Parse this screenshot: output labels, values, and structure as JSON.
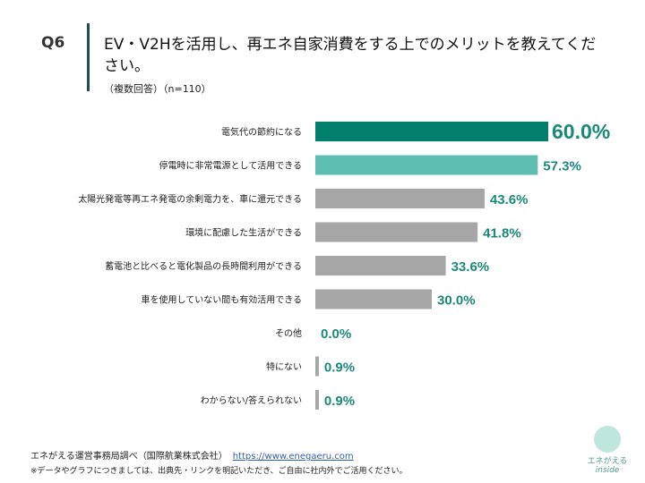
{
  "header": {
    "q_label": "Q6",
    "title": "EV・V2Hを活用し、再エネ自家消費をする上でのメリットを教えてください。",
    "subtitle": "（複数回答）（n=110）"
  },
  "chart_data": {
    "type": "bar",
    "orientation": "horizontal",
    "xlim": [
      0,
      60
    ],
    "grid": false,
    "categories": [
      "電気代の節約になる",
      "停電時に非常電源として活用できる",
      "太陽光発電等再エネ発電の余剰電力を、車に還元できる",
      "環境に配慮した生活ができる",
      "蓄電池と比べると電化製品の長時間利用ができる",
      "車を使用していない間も有効活用できる",
      "その他",
      "特にない",
      "わからない/答えられない"
    ],
    "values": [
      60.0,
      57.3,
      43.6,
      41.8,
      33.6,
      30.0,
      0.0,
      0.9,
      0.9
    ],
    "labels": [
      "60.0%",
      "57.3%",
      "43.6%",
      "41.8%",
      "33.6%",
      "30.0%",
      "0.0%",
      "0.9%",
      "0.9%"
    ],
    "colors": [
      "#00806c",
      "#5cbdb0",
      "#a6a6a6",
      "#a6a6a6",
      "#a6a6a6",
      "#a6a6a6",
      "#a6a6a6",
      "#a6a6a6",
      "#a6a6a6"
    ],
    "label_color": "#1a8a78"
  },
  "footer": {
    "source": "エネがえる運営事務局調べ（国際航業株式会社）",
    "link": "https://www.enegaeru.com",
    "note": "※データやグラフにつきましては、出典先・リンクを明記いただき、ご自由に社内外でご活用ください。",
    "logo_text": "エネがえる",
    "logo_sub": "inside"
  }
}
